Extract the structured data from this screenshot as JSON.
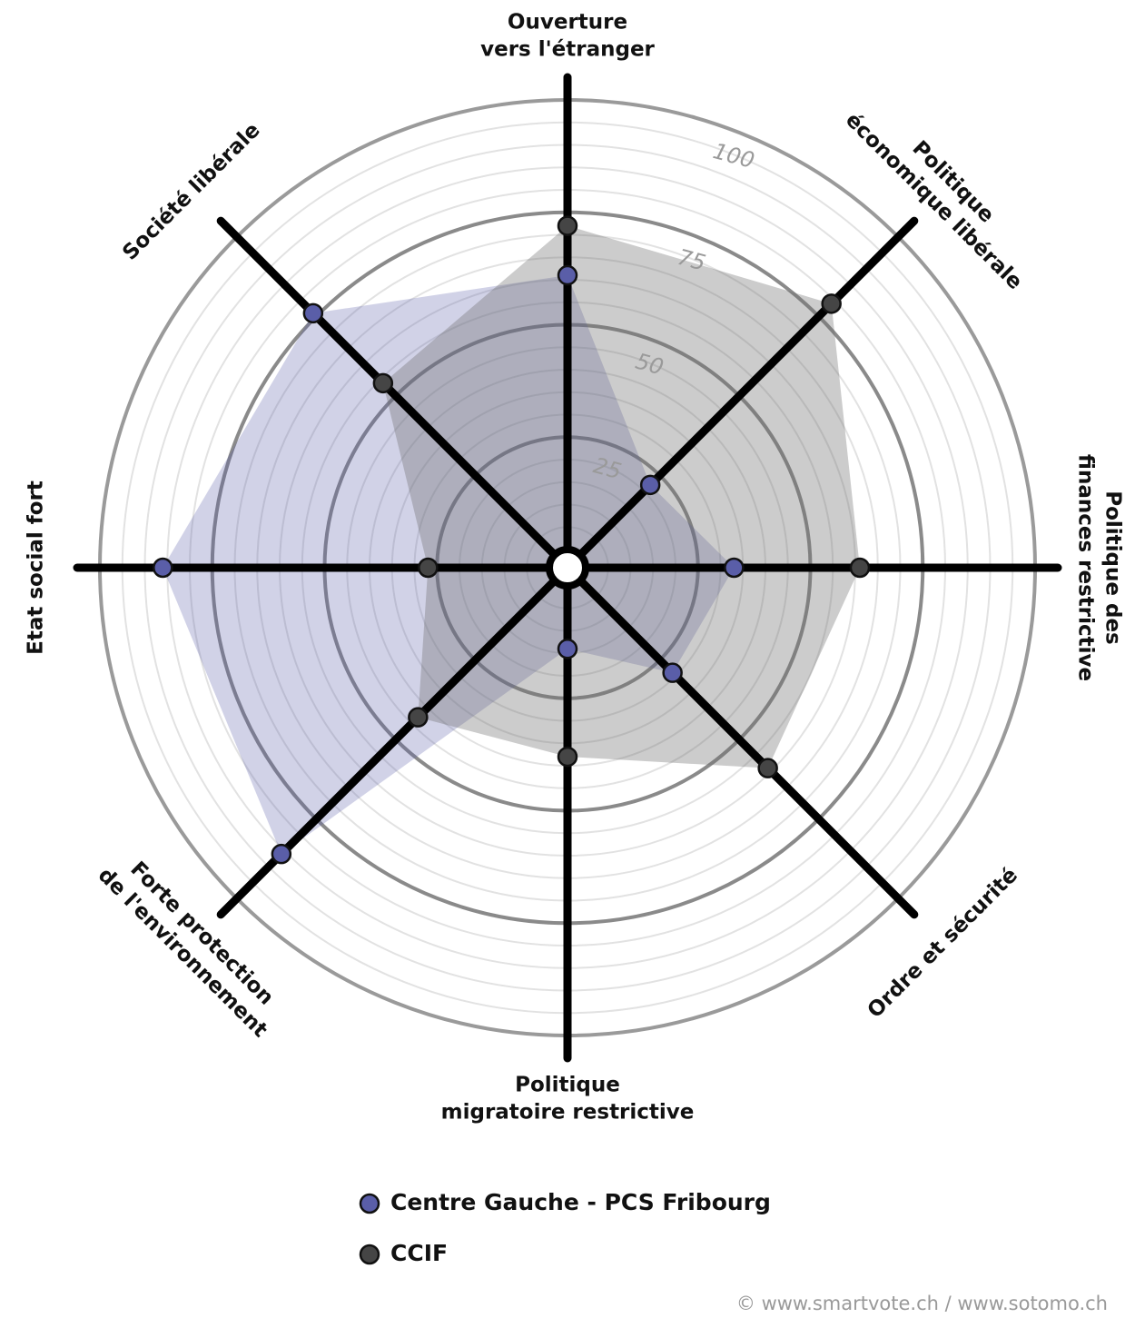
{
  "chart_data": {
    "type": "radar",
    "axes": [
      [
        "Ouverture",
        "vers l'étranger"
      ],
      [
        "Politique",
        "économique libérale"
      ],
      [
        "Politique des",
        "finances restrictive"
      ],
      [
        "Ordre et sécurité"
      ],
      [
        "Politique",
        "migratoire restrictive"
      ],
      [
        "Forte protection",
        "de l'environnement"
      ],
      [
        "Etat social fort"
      ],
      [
        "Société libérale"
      ]
    ],
    "rlim": [
      0,
      100
    ],
    "rticks": [
      25,
      50,
      75,
      100
    ],
    "minor_grid_step": 5,
    "series": [
      {
        "name": "Centre Gauche - PCS Fribourg",
        "color": "#5a5ea8",
        "fill": "rgba(90,95,170,0.28)",
        "values": [
          61,
          22,
          33,
          29,
          14,
          86,
          86,
          76
        ]
      },
      {
        "name": "CCIF",
        "color": "#454545",
        "fill": "rgba(110,110,110,0.35)",
        "values": [
          72,
          79,
          61,
          59,
          38,
          43,
          27,
          54
        ]
      }
    ],
    "source": "© www.smartvote.ch / www.sotomo.ch"
  }
}
